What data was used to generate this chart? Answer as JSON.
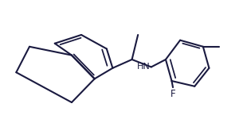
{
  "bg_color": "#ffffff",
  "line_color": "#1a1a40",
  "lw": 1.5,
  "figsize": [
    3.1,
    1.5
  ],
  "dpi": 100,
  "font_color": "#1a1a40",
  "F_label": "F",
  "HN_label": "HN"
}
